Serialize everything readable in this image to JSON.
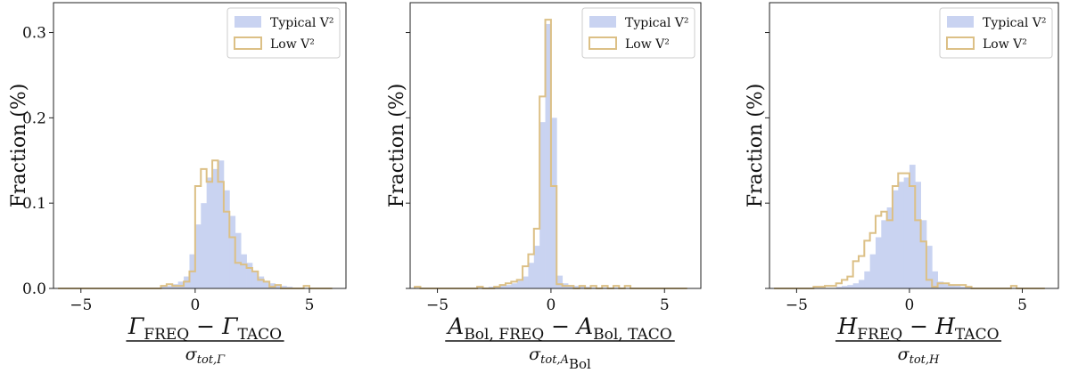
{
  "chart_data": [
    {
      "type": "histogram",
      "ylabel": "Fraction (%)",
      "xlabel": {
        "numerator_main": "Γ",
        "numerator_sub1": "FREQ",
        "minus": " − ",
        "numerator_main2": "Γ",
        "numerator_sub2": "TACO",
        "denominator_main": "σ",
        "denominator_sub": "tot,Γ",
        "denominator_subsub": ""
      },
      "xlim": [
        -6.2,
        6.6
      ],
      "ylim": [
        0,
        0.335
      ],
      "xticks": [
        -5,
        0,
        5
      ],
      "xtick_labels": [
        "−5",
        "0",
        "5"
      ],
      "yticks": [
        0.0,
        0.1,
        0.2,
        0.3
      ],
      "ytick_labels": [
        "0.0",
        "0.1",
        "0.2",
        "0.3"
      ],
      "show_ytick_labels": true,
      "bin_start": -6.0,
      "bin_width": 0.25,
      "legend": [
        "Typical V²",
        "Low V²"
      ],
      "series": [
        {
          "name": "Typical V²",
          "style": "filled",
          "color": "#c9d3f1",
          "values": [
            0,
            0,
            0,
            0,
            0,
            0,
            0,
            0,
            0,
            0,
            0,
            0,
            0,
            0,
            0,
            0,
            0,
            0,
            0.003,
            0.003,
            0.005,
            0.008,
            0.014,
            0.04,
            0.075,
            0.1,
            0.13,
            0.14,
            0.15,
            0.115,
            0.085,
            0.065,
            0.04,
            0.03,
            0.02,
            0.014,
            0.009,
            0.006,
            0.004,
            0.003,
            0.002,
            0.001,
            0.001,
            0,
            0,
            0,
            0,
            0
          ]
        },
        {
          "name": "Low V²",
          "style": "step",
          "color": "#dcc086",
          "values": [
            0,
            0,
            0,
            0,
            0,
            0,
            0,
            0,
            0,
            0,
            0,
            0,
            0,
            0,
            0,
            0,
            0,
            0,
            0.003,
            0.005,
            0.003,
            0.003,
            0.008,
            0.02,
            0.12,
            0.14,
            0.125,
            0.15,
            0.125,
            0.09,
            0.06,
            0.03,
            0.028,
            0.024,
            0.02,
            0.01,
            0.008,
            0.002,
            0.004,
            0,
            0,
            0,
            0,
            0.003,
            0,
            0,
            0,
            0
          ]
        }
      ]
    },
    {
      "type": "histogram",
      "ylabel": "Fraction (%)",
      "xlabel": {
        "numerator_main": "A",
        "numerator_sub1": "Bol, FREQ",
        "minus": " − ",
        "numerator_main2": "A",
        "numerator_sub2": "Bol, TACO",
        "denominator_main": "σ",
        "denominator_sub": "tot,A",
        "denominator_subsub": "Bol"
      },
      "xlim": [
        -6.2,
        6.6
      ],
      "ylim": [
        0,
        0.335
      ],
      "xticks": [
        -5,
        0,
        5
      ],
      "xtick_labels": [
        "−5",
        "0",
        "5"
      ],
      "yticks": [
        0.0,
        0.1,
        0.2,
        0.3
      ],
      "ytick_labels": [
        "0.0",
        "0.1",
        "0.2",
        "0.3"
      ],
      "show_ytick_labels": false,
      "bin_start": -6.0,
      "bin_width": 0.25,
      "legend": [
        "Typical V²",
        "Low V²"
      ],
      "series": [
        {
          "name": "Typical V²",
          "style": "filled",
          "color": "#c9d3f1",
          "values": [
            0,
            0,
            0,
            0,
            0,
            0,
            0,
            0,
            0,
            0,
            0,
            0,
            0.001,
            0.002,
            0.002,
            0.003,
            0.004,
            0.006,
            0.009,
            0.014,
            0.03,
            0.05,
            0.195,
            0.31,
            0.2,
            0.015,
            0.006,
            0.004,
            0.003,
            0.002,
            0.002,
            0.001,
            0.001,
            0.001,
            0.001,
            0.001,
            0.001,
            0,
            0,
            0,
            0,
            0,
            0,
            0,
            0,
            0,
            0,
            0
          ]
        },
        {
          "name": "Low V²",
          "style": "step",
          "color": "#dcc086",
          "values": [
            0.002,
            0,
            0,
            0,
            0,
            0,
            0,
            0,
            0,
            0,
            0,
            0.002,
            0,
            0,
            0.002,
            0.004,
            0.006,
            0.008,
            0.01,
            0.026,
            0.04,
            0.07,
            0.225,
            0.315,
            0.12,
            0.005,
            0.003,
            0.003,
            0,
            0.003,
            0,
            0.003,
            0,
            0.003,
            0,
            0.003,
            0,
            0.003,
            0,
            0,
            0,
            0,
            0,
            0,
            0,
            0,
            0,
            0
          ]
        }
      ]
    },
    {
      "type": "histogram",
      "ylabel": "Fraction (%)",
      "xlabel": {
        "numerator_main": "H",
        "numerator_sub1": "FREQ",
        "minus": " − ",
        "numerator_main2": "H",
        "numerator_sub2": "TACO",
        "denominator_main": "σ",
        "denominator_sub": "tot,H",
        "denominator_subsub": ""
      },
      "xlim": [
        -6.2,
        6.6
      ],
      "ylim": [
        0,
        0.335
      ],
      "xticks": [
        -5,
        0,
        5
      ],
      "xtick_labels": [
        "−5",
        "0",
        "5"
      ],
      "yticks": [
        0.0,
        0.1,
        0.2,
        0.3
      ],
      "ytick_labels": [
        "0.0",
        "0.1",
        "0.2",
        "0.3"
      ],
      "show_ytick_labels": false,
      "bin_start": -6.0,
      "bin_width": 0.25,
      "legend": [
        "Typical V²",
        "Low V²"
      ],
      "series": [
        {
          "name": "Typical V²",
          "style": "filled",
          "color": "#c9d3f1",
          "values": [
            0,
            0,
            0,
            0,
            0,
            0,
            0,
            0,
            0,
            0,
            0,
            0.002,
            0.003,
            0.004,
            0.006,
            0.01,
            0.02,
            0.04,
            0.06,
            0.08,
            0.095,
            0.115,
            0.125,
            0.13,
            0.145,
            0.125,
            0.08,
            0.05,
            0.02,
            0.008,
            0.005,
            0.004,
            0.003,
            0.002,
            0.002,
            0.001,
            0.001,
            0.001,
            0,
            0,
            0,
            0,
            0,
            0,
            0,
            0,
            0,
            0
          ]
        },
        {
          "name": "Low V²",
          "style": "step",
          "color": "#dcc086",
          "values": [
            0,
            0,
            0,
            0,
            0,
            0,
            0,
            0.002,
            0.002,
            0.003,
            0.003,
            0.006,
            0.01,
            0.014,
            0.032,
            0.038,
            0.056,
            0.065,
            0.085,
            0.09,
            0.08,
            0.12,
            0.135,
            0.135,
            0.12,
            0.08,
            0.055,
            0.01,
            0.002,
            0.006,
            0.006,
            0.004,
            0.004,
            0.004,
            0.002,
            0,
            0,
            0,
            0,
            0,
            0,
            0,
            0.003,
            0,
            0,
            0,
            0,
            0
          ]
        }
      ]
    }
  ]
}
